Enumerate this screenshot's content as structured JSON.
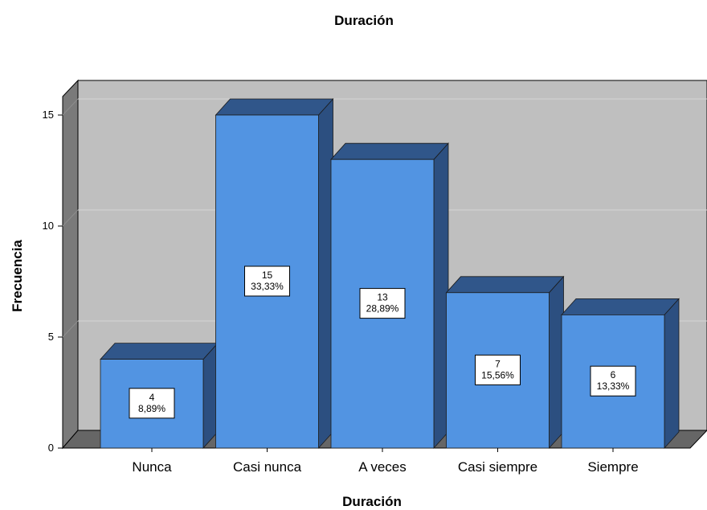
{
  "chart_data": {
    "type": "bar",
    "title": "Duración",
    "xlabel": "Duración",
    "ylabel": "Frecuencia",
    "categories": [
      "Nunca",
      "Casi nunca",
      "A veces",
      "Casi siempre",
      "Siempre"
    ],
    "values": [
      4,
      15,
      13,
      7,
      6
    ],
    "percent_labels": [
      "8,89%",
      "33,33%",
      "28,89%",
      "15,56%",
      "13,33%"
    ],
    "yticks": [
      0,
      5,
      10,
      15
    ],
    "ylim": [
      0,
      16
    ],
    "grid": true,
    "three_d": true,
    "colors": {
      "bar_front": "#5294e2",
      "bar_top": "#30568a",
      "bar_side": "#2c4f80",
      "wall": "#bfbfbf",
      "wall_side": "#7a7a7a",
      "floor": "#666666",
      "gridline": "#d6d6d6"
    }
  }
}
